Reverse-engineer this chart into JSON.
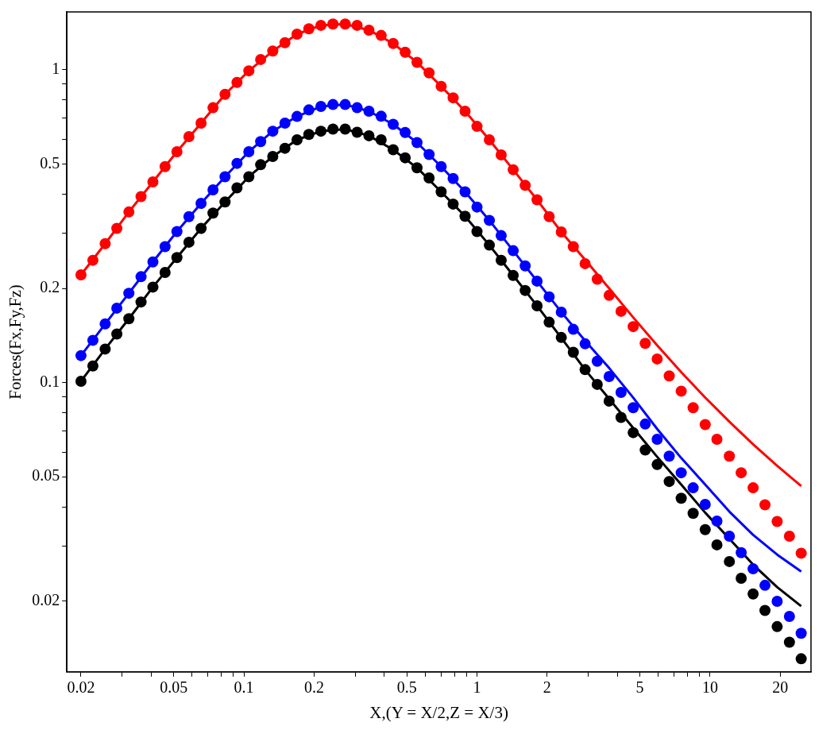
{
  "chart_data": {
    "type": "scatter",
    "xlabel": "X,(Y = X/2,Z = X/3)",
    "ylabel": "Forces(Fx,Fy,Fz)",
    "log": "xy",
    "grid": false,
    "legend": false,
    "marker": "circle",
    "xlim": [
      0.0174,
      27.1
    ],
    "ylim": [
      0.0119,
      1.53
    ],
    "xticks": [
      0.02,
      {
        "value": 0.03,
        "label": null
      },
      {
        "value": 0.04,
        "label": null
      },
      0.05,
      {
        "value": 0.06,
        "label": null
      },
      {
        "value": 0.07,
        "label": null
      },
      {
        "value": 0.08,
        "label": null
      },
      {
        "value": 0.09,
        "label": null
      },
      0.1,
      0.2,
      {
        "value": 0.3,
        "label": null
      },
      {
        "value": 0.4,
        "label": null
      },
      0.5,
      {
        "value": 0.6,
        "label": null
      },
      {
        "value": 0.7,
        "label": null
      },
      {
        "value": 0.8,
        "label": null
      },
      {
        "value": 0.9,
        "label": null
      },
      1,
      2,
      {
        "value": 3,
        "label": null
      },
      {
        "value": 4,
        "label": null
      },
      5,
      {
        "value": 6,
        "label": null
      },
      {
        "value": 7,
        "label": null
      },
      {
        "value": 8,
        "label": null
      },
      {
        "value": 9,
        "label": null
      },
      10,
      20
    ],
    "yticks": [
      0.02,
      {
        "value": 0.03,
        "label": null
      },
      {
        "value": 0.04,
        "label": null
      },
      0.05,
      {
        "value": 0.06,
        "label": null
      },
      {
        "value": 0.07,
        "label": null
      },
      {
        "value": 0.08,
        "label": null
      },
      {
        "value": 0.09,
        "label": null
      },
      0.1,
      0.2,
      {
        "value": 0.3,
        "label": null
      },
      {
        "value": 0.4,
        "label": null
      },
      0.5,
      {
        "value": 0.6,
        "label": null
      },
      {
        "value": 0.7,
        "label": null
      },
      {
        "value": 0.8,
        "label": null
      },
      {
        "value": 0.9,
        "label": null
      },
      1
    ],
    "x": [
      0.02,
      0.0225,
      0.0254,
      0.0285,
      0.0321,
      0.0362,
      0.0407,
      0.0459,
      0.0516,
      0.0581,
      0.0655,
      0.0737,
      0.083,
      0.0934,
      0.105,
      0.118,
      0.133,
      0.15,
      0.169,
      0.19,
      0.214,
      0.241,
      0.272,
      0.306,
      0.344,
      0.388,
      0.437,
      0.492,
      0.553,
      0.623,
      0.702,
      0.79,
      0.889,
      1.0,
      1.13,
      1.27,
      1.43,
      1.61,
      1.81,
      2.04,
      2.3,
      2.59,
      2.91,
      3.28,
      3.69,
      4.15,
      4.68,
      5.27,
      5.93,
      6.68,
      7.52,
      8.46,
      9.53,
      10.7,
      12.1,
      13.6,
      15.3,
      17.2,
      19.4,
      21.9,
      24.6
    ],
    "series": [
      {
        "type": "scatter",
        "color": "#ff0000",
        "values": [
          0.221,
          0.246,
          0.278,
          0.311,
          0.351,
          0.393,
          0.438,
          0.49,
          0.547,
          0.611,
          0.675,
          0.756,
          0.834,
          0.911,
          0.992,
          1.078,
          1.147,
          1.22,
          1.299,
          1.351,
          1.386,
          1.4,
          1.4,
          1.386,
          1.338,
          1.287,
          1.213,
          1.137,
          1.056,
          0.977,
          0.885,
          0.813,
          0.737,
          0.659,
          0.597,
          0.534,
          0.479,
          0.427,
          0.384,
          0.339,
          0.303,
          0.272,
          0.24,
          0.214,
          0.19,
          0.169,
          0.151,
          0.1335,
          0.119,
          0.105,
          0.0939,
          0.0831,
          0.0734,
          0.0659,
          0.0582,
          0.0515,
          0.0461,
          0.0407,
          0.036,
          0.0323,
          0.0285
        ]
      },
      {
        "type": "scatter",
        "color": "#0000ff",
        "values": [
          0.122,
          0.1365,
          0.154,
          0.173,
          0.193,
          0.218,
          0.243,
          0.272,
          0.304,
          0.339,
          0.374,
          0.413,
          0.455,
          0.502,
          0.547,
          0.589,
          0.636,
          0.675,
          0.709,
          0.744,
          0.763,
          0.774,
          0.774,
          0.756,
          0.737,
          0.71,
          0.669,
          0.63,
          0.585,
          0.536,
          0.49,
          0.449,
          0.407,
          0.364,
          0.33,
          0.295,
          0.264,
          0.236,
          0.211,
          0.188,
          0.168,
          0.148,
          0.133,
          0.117,
          0.1046,
          0.093,
          0.0831,
          0.0737,
          0.0659,
          0.0582,
          0.0515,
          0.0461,
          0.0408,
          0.0361,
          0.0323,
          0.0286,
          0.0254,
          0.0225,
          0.02,
          0.0179,
          0.0158
        ]
      },
      {
        "type": "scatter",
        "color": "#000000",
        "values": [
          0.101,
          0.113,
          0.128,
          0.143,
          0.16,
          0.181,
          0.202,
          0.225,
          0.251,
          0.281,
          0.311,
          0.348,
          0.378,
          0.419,
          0.455,
          0.497,
          0.528,
          0.561,
          0.597,
          0.621,
          0.636,
          0.646,
          0.646,
          0.631,
          0.615,
          0.597,
          0.555,
          0.523,
          0.486,
          0.451,
          0.407,
          0.372,
          0.34,
          0.304,
          0.275,
          0.246,
          0.22,
          0.197,
          0.176,
          0.156,
          0.1394,
          0.125,
          0.11,
          0.0987,
          0.0873,
          0.0774,
          0.0692,
          0.0609,
          0.0547,
          0.0483,
          0.0427,
          0.0382,
          0.0339,
          0.0303,
          0.0268,
          0.0237,
          0.0211,
          0.0187,
          0.0166,
          0.0148,
          0.0131
        ]
      },
      {
        "type": "line",
        "marker": "none",
        "color": "#ff0000",
        "x": [
          0.02,
          0.0254,
          0.0321,
          0.0407,
          0.0516,
          0.0655,
          0.083,
          0.105,
          0.133,
          0.169,
          0.214,
          0.272,
          0.344,
          0.437,
          0.553,
          0.702,
          0.889,
          1.13,
          1.43,
          1.81,
          2.3,
          2.91,
          3.69,
          4.68,
          5.93,
          7.52,
          9.53,
          12.1,
          15.3,
          19.4,
          24.6
        ],
        "values": [
          0.221,
          0.278,
          0.351,
          0.438,
          0.547,
          0.675,
          0.834,
          0.992,
          1.147,
          1.299,
          1.386,
          1.4,
          1.338,
          1.213,
          1.056,
          0.885,
          0.737,
          0.597,
          0.479,
          0.384,
          0.303,
          0.247,
          0.2,
          0.1615,
          0.1315,
          0.108,
          0.0896,
          0.075,
          0.0635,
          0.0542,
          0.0467
        ]
      },
      {
        "type": "line",
        "marker": "none",
        "color": "#0000ff",
        "x": [
          0.02,
          0.0254,
          0.0321,
          0.0407,
          0.0516,
          0.0655,
          0.083,
          0.105,
          0.133,
          0.169,
          0.214,
          0.272,
          0.344,
          0.437,
          0.553,
          0.702,
          0.889,
          1.13,
          1.43,
          1.81,
          2.3,
          2.91,
          3.69,
          4.68,
          5.93,
          7.52,
          9.53,
          12.1,
          15.3,
          19.4,
          24.6
        ],
        "values": [
          0.122,
          0.154,
          0.193,
          0.243,
          0.304,
          0.374,
          0.455,
          0.547,
          0.636,
          0.709,
          0.763,
          0.774,
          0.737,
          0.669,
          0.585,
          0.49,
          0.407,
          0.33,
          0.264,
          0.211,
          0.168,
          0.136,
          0.1113,
          0.0895,
          0.0711,
          0.0574,
          0.0472,
          0.0387,
          0.0326,
          0.0282,
          0.0249
        ]
      },
      {
        "type": "line",
        "marker": "none",
        "color": "#000000",
        "x": [
          0.02,
          0.0254,
          0.0321,
          0.0407,
          0.0516,
          0.0655,
          0.083,
          0.105,
          0.133,
          0.169,
          0.214,
          0.272,
          0.344,
          0.437,
          0.553,
          0.702,
          0.889,
          1.13,
          1.43,
          1.81,
          2.3,
          2.91,
          3.69,
          4.68,
          5.93,
          7.52,
          9.53,
          12.1,
          15.3,
          19.4,
          24.6
        ],
        "values": [
          0.101,
          0.128,
          0.16,
          0.202,
          0.251,
          0.311,
          0.378,
          0.455,
          0.528,
          0.597,
          0.636,
          0.646,
          0.615,
          0.555,
          0.486,
          0.407,
          0.34,
          0.275,
          0.22,
          0.176,
          0.139,
          0.11,
          0.0887,
          0.0716,
          0.0579,
          0.0472,
          0.0384,
          0.0317,
          0.0262,
          0.0222,
          0.0193
        ]
      }
    ]
  }
}
